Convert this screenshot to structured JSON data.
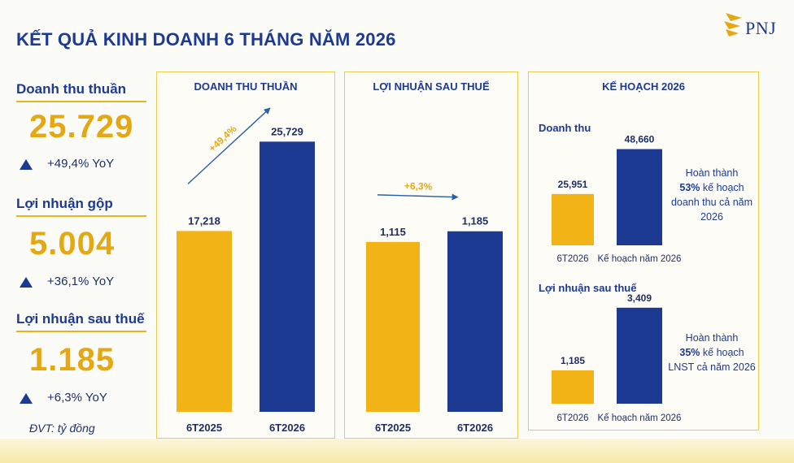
{
  "title": "KẾT QUẢ KINH DOANH 6 THÁNG NĂM 2026",
  "logo": {
    "text": "PNJ"
  },
  "colors": {
    "gold": "#f2b316",
    "navy": "#1d3a93",
    "border": "#eccb52"
  },
  "kpis": [
    {
      "label": "Doanh thu thuần",
      "value": "25.729",
      "change": "+49,4% YoY",
      "icon": "up-triangle-icon"
    },
    {
      "label": "Lợi nhuận gộp",
      "value": "5.004",
      "change": "+36,1% YoY",
      "icon": "up-triangle-icon"
    },
    {
      "label": "Lợi nhuận sau thuế",
      "value": "1.185",
      "change": "+6,3% YoY",
      "icon": "up-triangle-icon"
    }
  ],
  "unit_note": "ĐVT: tỷ đồng",
  "chart_data": [
    {
      "type": "bar",
      "title": "DOANH THU THUẦN",
      "categories": [
        "6T2025",
        "6T2026"
      ],
      "values": [
        17218,
        25729
      ],
      "value_labels": [
        "17,218",
        "25,729"
      ],
      "growth_label": "+49,4%",
      "ylim": [
        0,
        28000
      ]
    },
    {
      "type": "bar",
      "title": "LỢI NHUẬN SAU THUẾ",
      "categories": [
        "6T2025",
        "6T2026"
      ],
      "values": [
        1115,
        1185
      ],
      "value_labels": [
        "1,115",
        "1,185"
      ],
      "growth_label": "+6,3%",
      "ylim": [
        0,
        1930
      ]
    },
    {
      "type": "bar",
      "title": "Doanh thu",
      "categories": [
        "6T2026",
        "Kế hoạch năm 2026"
      ],
      "values": [
        25951,
        48660
      ],
      "value_labels": [
        "25,951",
        "48,660"
      ],
      "ylim": [
        0,
        53000
      ]
    },
    {
      "type": "bar",
      "title": "Lợi nhuận sau thuế",
      "categories": [
        "6T2026",
        "Kế hoạch năm 2026"
      ],
      "values": [
        1185,
        3409
      ],
      "value_labels": [
        "1,185",
        "3,409"
      ],
      "ylim": [
        0,
        3750
      ]
    }
  ],
  "plan": {
    "title": "KẾ HOẠCH 2026",
    "revenue_note": {
      "pre": "Hoàn thành",
      "pct": "53%",
      "post": "kế hoạch doanh thu cả năm 2026"
    },
    "profit_note": {
      "pre": "Hoàn thành",
      "pct": "35%",
      "post": "kế hoạch LNST cả năm 2026"
    }
  }
}
